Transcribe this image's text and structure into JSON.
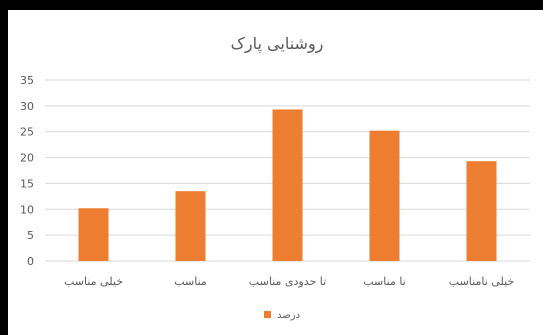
{
  "chart_data": {
    "type": "bar",
    "title": "روشنایی پارک",
    "categories": [
      "خیلی مناسب",
      "مناسب",
      "تا حدودی مناسب",
      "نا مناسب",
      "خیلی نامناسب"
    ],
    "series": [
      {
        "name": "درصد",
        "values": [
          10.2,
          13.5,
          29.3,
          25.2,
          19.3
        ],
        "color": "#ED7D31"
      }
    ],
    "ylim": [
      0,
      35
    ],
    "yticks": [
      0,
      5,
      10,
      15,
      20,
      25,
      30,
      35
    ],
    "grid": true,
    "legend_position": "bottom"
  }
}
